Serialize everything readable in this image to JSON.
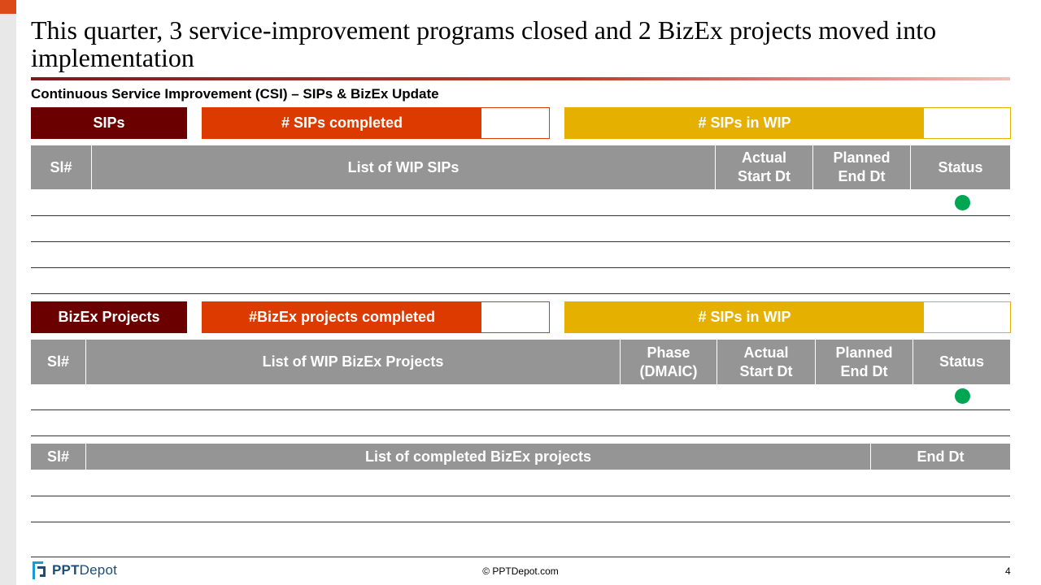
{
  "title": "This quarter, 3 service-improvement programs closed and 2 BizEx projects moved into implementation",
  "subtitle": "Continuous Service Improvement (CSI) – SIPs & BizEx Update",
  "sips": {
    "label": "SIPs",
    "completed_label": "# SIPs completed",
    "wip_label": "# SIPs in WIP",
    "table_headers": [
      "Sl#",
      "List of WIP SIPs",
      "Actual Start Dt",
      "Planned End Dt",
      "Status"
    ],
    "rows": [
      {
        "status": "green"
      },
      {
        "status": ""
      },
      {
        "status": ""
      },
      {
        "status": ""
      }
    ]
  },
  "bizex": {
    "label": "BizEx Projects",
    "completed_label": "#BizEx projects completed",
    "wip_label": "# SIPs in WIP",
    "table_headers": [
      "Sl#",
      "List of WIP BizEx Projects",
      "Phase (DMAIC)",
      "Actual Start  Dt",
      "Planned End Dt",
      "Status"
    ],
    "rows": [
      {
        "status": "green"
      },
      {
        "status": ""
      }
    ]
  },
  "completed_table": {
    "headers": [
      "Sl#",
      "List of completed BizEx projects",
      "End Dt"
    ]
  },
  "footer": {
    "logo_bold": "PPT",
    "logo_rest": "Depot",
    "copyright": "© PPTDepot.com",
    "page": "4"
  },
  "colors": {
    "dark_red": "#6b0000",
    "orange": "#dd3a00",
    "gold": "#e6b000",
    "header_gray": "#959595",
    "status_green": "#00a651"
  }
}
